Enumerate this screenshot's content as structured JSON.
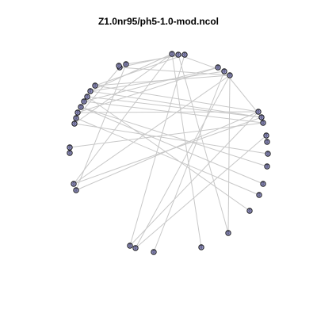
{
  "title": "Z1.0nr95/ph5-1.0-mod.ncol",
  "node_label": "0",
  "colors": {
    "edge": "#c8c8c8",
    "node_fill": "#9a9ad0",
    "node_stroke": "#1a1a1a"
  },
  "node_count": 36
}
